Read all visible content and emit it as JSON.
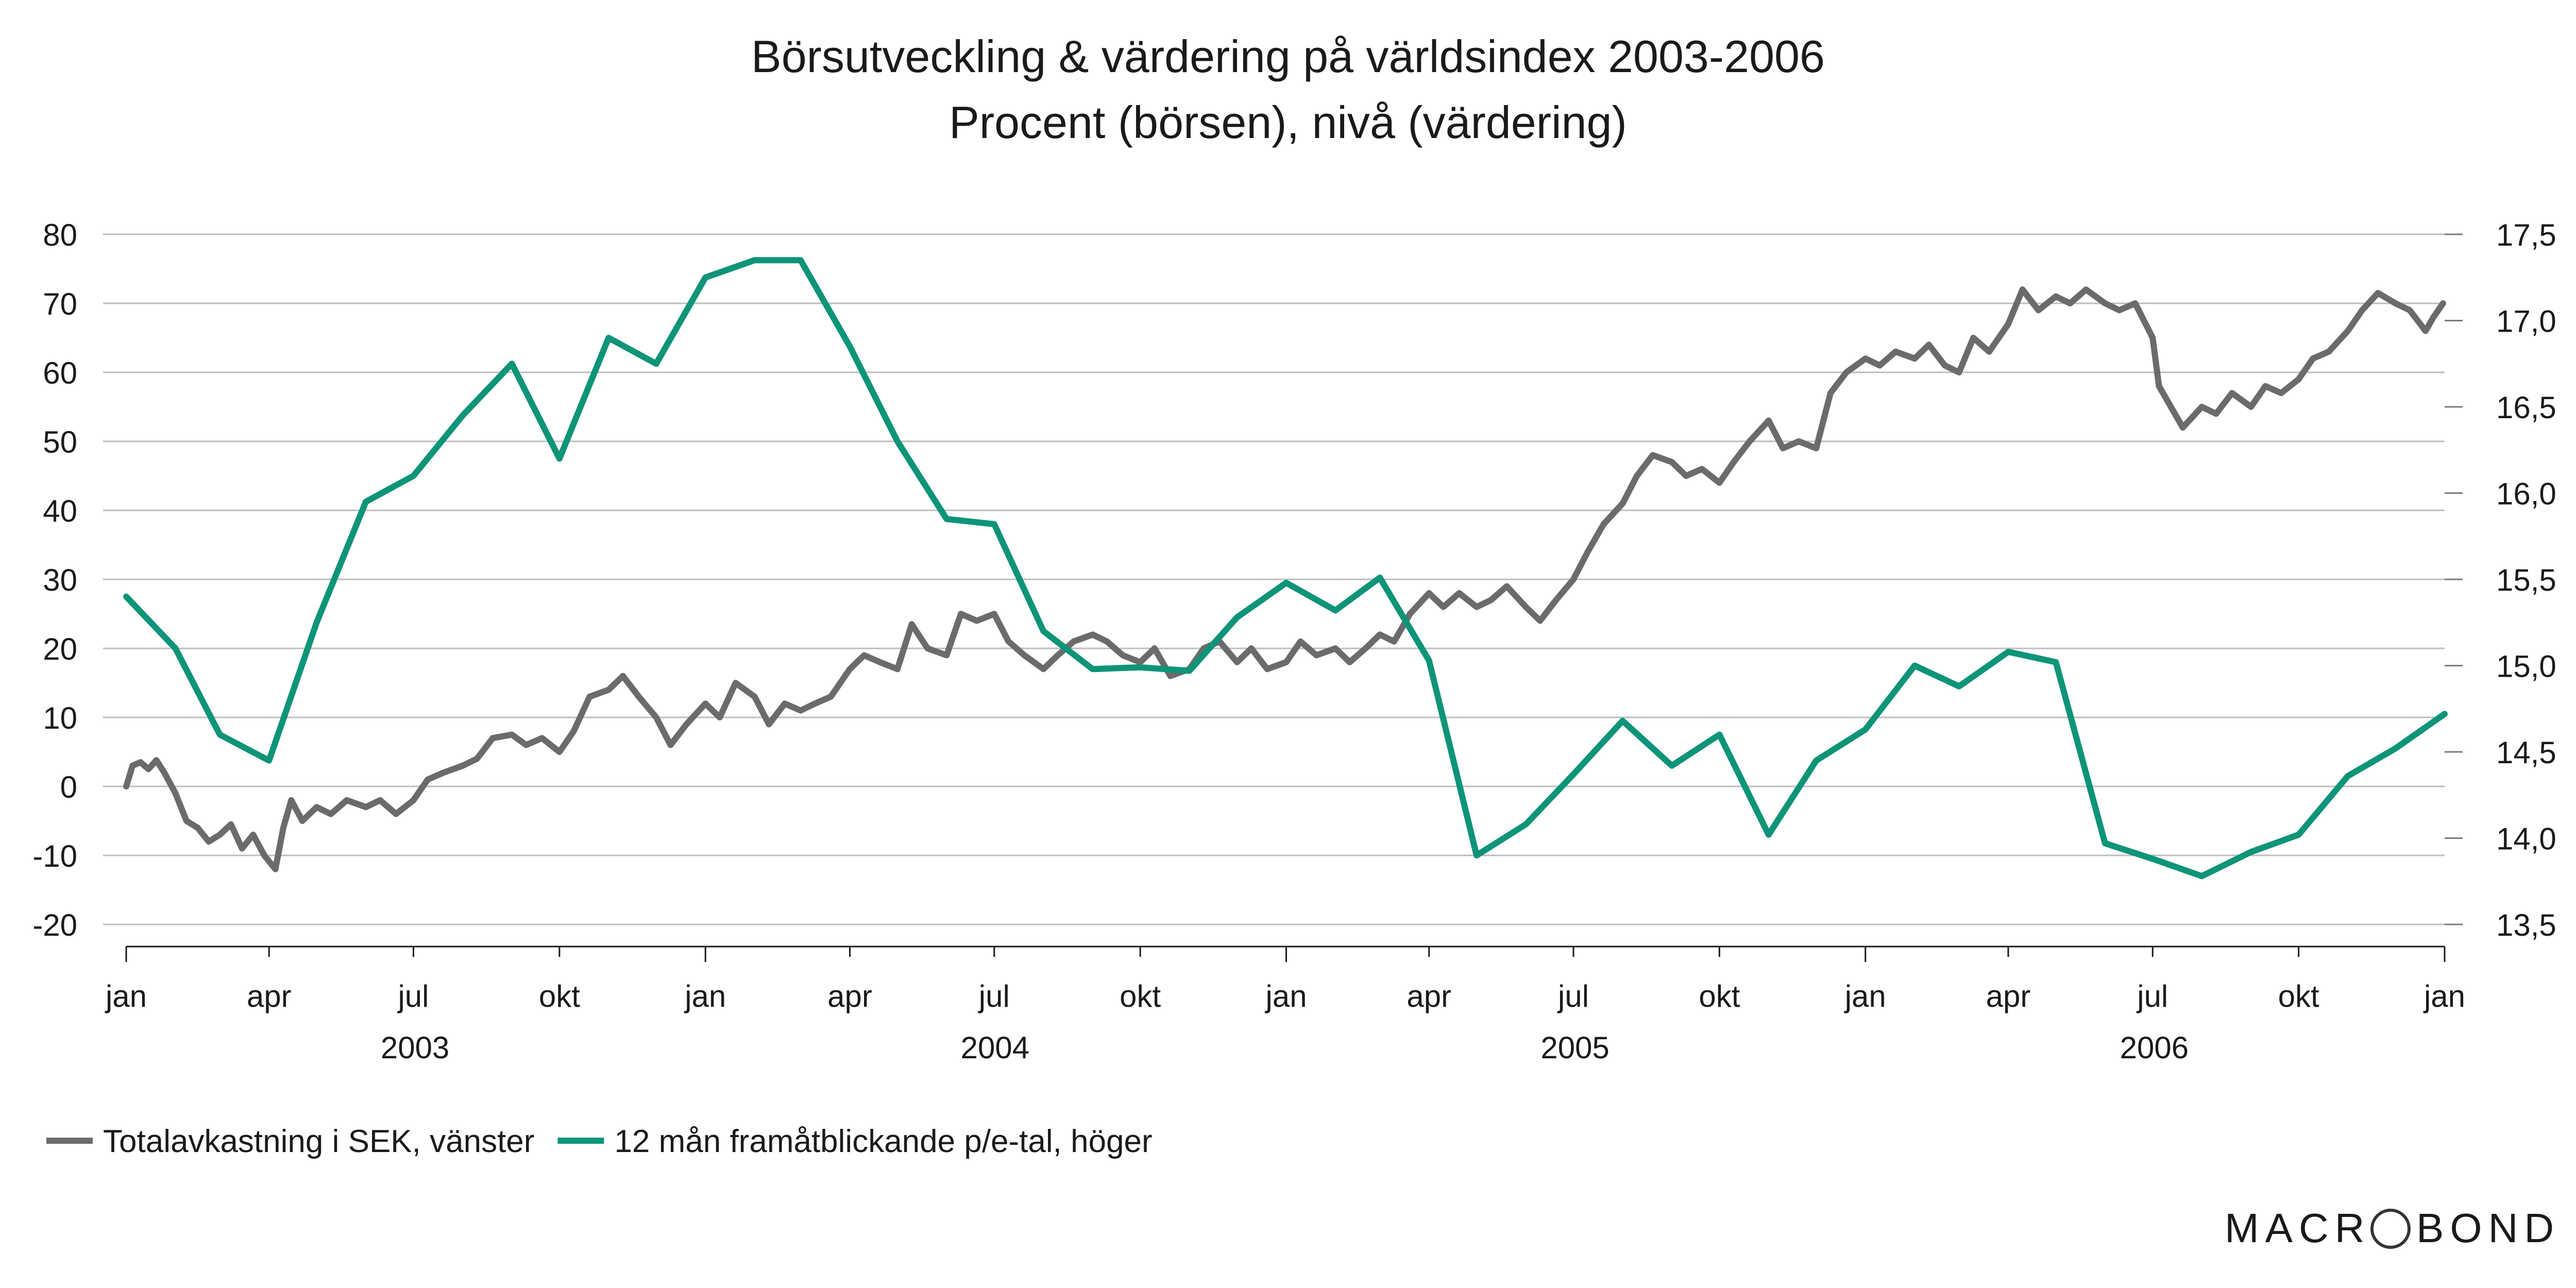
{
  "chart_data": {
    "type": "line",
    "title": "Börsutveckling & värdering på världsindex 2003-2006",
    "subtitle": "Procent (börsen), nivå (värdering)",
    "x_tick_labels": [
      "jan",
      "apr",
      "jul",
      "okt",
      "jan",
      "apr",
      "jul",
      "okt",
      "jan",
      "apr",
      "jul",
      "okt",
      "jan",
      "apr",
      "jul",
      "okt",
      "jan"
    ],
    "x_year_labels": [
      "2003",
      "2004",
      "2005",
      "2006"
    ],
    "xlim": [
      "2003-01-01",
      "2007-01-01"
    ],
    "left_axis": {
      "ylim": [
        -20,
        80
      ],
      "ticks": [
        "-20",
        "-10",
        "0",
        "10",
        "20",
        "30",
        "40",
        "50",
        "60",
        "70",
        "80"
      ]
    },
    "right_axis": {
      "ylim": [
        13.5,
        17.5
      ],
      "ticks": [
        "13,5",
        "14,0",
        "14,5",
        "15,0",
        "15,5",
        "16,0",
        "16,5",
        "17,0",
        "17,5"
      ]
    },
    "grid": true,
    "legend_position": "bottom-left",
    "series": [
      {
        "name": "Totalavkastning i SEK, vänster",
        "axis": "left",
        "color": "#6b6b6b",
        "points": [
          [
            "2003-01-01",
            0
          ],
          [
            "2003-01-05",
            3
          ],
          [
            "2003-01-10",
            3.5
          ],
          [
            "2003-01-15",
            2.5
          ],
          [
            "2003-01-20",
            3.8
          ],
          [
            "2003-01-25",
            2
          ],
          [
            "2003-02-01",
            -1
          ],
          [
            "2003-02-08",
            -5
          ],
          [
            "2003-02-15",
            -6
          ],
          [
            "2003-02-22",
            -8
          ],
          [
            "2003-03-01",
            -7
          ],
          [
            "2003-03-08",
            -5.5
          ],
          [
            "2003-03-15",
            -9
          ],
          [
            "2003-03-22",
            -7
          ],
          [
            "2003-03-29",
            -10
          ],
          [
            "2003-04-05",
            -12
          ],
          [
            "2003-04-10",
            -6
          ],
          [
            "2003-04-15",
            -2
          ],
          [
            "2003-04-22",
            -5
          ],
          [
            "2003-05-01",
            -3
          ],
          [
            "2003-05-10",
            -4
          ],
          [
            "2003-05-20",
            -2
          ],
          [
            "2003-06-01",
            -3
          ],
          [
            "2003-06-10",
            -2
          ],
          [
            "2003-06-20",
            -4
          ],
          [
            "2003-07-01",
            -2
          ],
          [
            "2003-07-10",
            1
          ],
          [
            "2003-07-20",
            2
          ],
          [
            "2003-08-01",
            3
          ],
          [
            "2003-08-10",
            4
          ],
          [
            "2003-08-20",
            7
          ],
          [
            "2003-09-01",
            7.5
          ],
          [
            "2003-09-10",
            6
          ],
          [
            "2003-09-20",
            7
          ],
          [
            "2003-10-01",
            5
          ],
          [
            "2003-10-10",
            8
          ],
          [
            "2003-10-20",
            13
          ],
          [
            "2003-11-01",
            14
          ],
          [
            "2003-11-10",
            16
          ],
          [
            "2003-11-20",
            13
          ],
          [
            "2003-12-01",
            10
          ],
          [
            "2003-12-10",
            6
          ],
          [
            "2003-12-20",
            9
          ],
          [
            "2004-01-01",
            12
          ],
          [
            "2004-01-10",
            10
          ],
          [
            "2004-01-20",
            15
          ],
          [
            "2004-02-01",
            13
          ],
          [
            "2004-02-10",
            9
          ],
          [
            "2004-02-20",
            12
          ],
          [
            "2004-03-01",
            11
          ],
          [
            "2004-03-10",
            12
          ],
          [
            "2004-03-20",
            13
          ],
          [
            "2004-04-01",
            17
          ],
          [
            "2004-04-10",
            19
          ],
          [
            "2004-04-20",
            18
          ],
          [
            "2004-05-01",
            17
          ],
          [
            "2004-05-10",
            23.5
          ],
          [
            "2004-05-20",
            20
          ],
          [
            "2004-06-01",
            19
          ],
          [
            "2004-06-10",
            25
          ],
          [
            "2004-06-20",
            24
          ],
          [
            "2004-07-01",
            25
          ],
          [
            "2004-07-10",
            21
          ],
          [
            "2004-07-20",
            19
          ],
          [
            "2004-08-01",
            17
          ],
          [
            "2004-08-10",
            19
          ],
          [
            "2004-08-20",
            21
          ],
          [
            "2004-09-01",
            22
          ],
          [
            "2004-09-10",
            21
          ],
          [
            "2004-09-20",
            19
          ],
          [
            "2004-10-01",
            18
          ],
          [
            "2004-10-10",
            20
          ],
          [
            "2004-10-20",
            16
          ],
          [
            "2004-11-01",
            17
          ],
          [
            "2004-11-10",
            20
          ],
          [
            "2004-11-20",
            21
          ],
          [
            "2004-12-01",
            18
          ],
          [
            "2004-12-10",
            20
          ],
          [
            "2004-12-20",
            17
          ],
          [
            "2005-01-01",
            18
          ],
          [
            "2005-01-10",
            21
          ],
          [
            "2005-01-20",
            19
          ],
          [
            "2005-02-01",
            20
          ],
          [
            "2005-02-10",
            18
          ],
          [
            "2005-02-20",
            20
          ],
          [
            "2005-03-01",
            22
          ],
          [
            "2005-03-10",
            21
          ],
          [
            "2005-03-20",
            25
          ],
          [
            "2005-04-01",
            28
          ],
          [
            "2005-04-10",
            26
          ],
          [
            "2005-04-20",
            28
          ],
          [
            "2005-05-01",
            26
          ],
          [
            "2005-05-10",
            27
          ],
          [
            "2005-05-20",
            29
          ],
          [
            "2005-06-01",
            26
          ],
          [
            "2005-06-10",
            24
          ],
          [
            "2005-06-20",
            27
          ],
          [
            "2005-07-01",
            30
          ],
          [
            "2005-07-10",
            34
          ],
          [
            "2005-07-20",
            38
          ],
          [
            "2005-08-01",
            41
          ],
          [
            "2005-08-10",
            45
          ],
          [
            "2005-08-20",
            48
          ],
          [
            "2005-09-01",
            47
          ],
          [
            "2005-09-10",
            45
          ],
          [
            "2005-09-20",
            46
          ],
          [
            "2005-10-01",
            44
          ],
          [
            "2005-10-10",
            47
          ],
          [
            "2005-10-20",
            50
          ],
          [
            "2005-11-01",
            53
          ],
          [
            "2005-11-10",
            49
          ],
          [
            "2005-11-20",
            50
          ],
          [
            "2005-12-01",
            49
          ],
          [
            "2005-12-10",
            57
          ],
          [
            "2005-12-20",
            60
          ],
          [
            "2006-01-01",
            62
          ],
          [
            "2006-01-10",
            61
          ],
          [
            "2006-01-20",
            63
          ],
          [
            "2006-02-01",
            62
          ],
          [
            "2006-02-10",
            64
          ],
          [
            "2006-02-20",
            61
          ],
          [
            "2006-03-01",
            60
          ],
          [
            "2006-03-10",
            65
          ],
          [
            "2006-03-20",
            63
          ],
          [
            "2006-04-01",
            67
          ],
          [
            "2006-04-10",
            72
          ],
          [
            "2006-04-20",
            69
          ],
          [
            "2006-05-01",
            71
          ],
          [
            "2006-05-10",
            70
          ],
          [
            "2006-05-20",
            72
          ],
          [
            "2006-06-01",
            70
          ],
          [
            "2006-06-10",
            69
          ],
          [
            "2006-06-20",
            70
          ],
          [
            "2006-07-01",
            65
          ],
          [
            "2006-07-05",
            58
          ],
          [
            "2006-07-10",
            56
          ],
          [
            "2006-07-20",
            52
          ],
          [
            "2006-08-01",
            55
          ],
          [
            "2006-08-10",
            54
          ],
          [
            "2006-08-20",
            57
          ],
          [
            "2006-09-01",
            55
          ],
          [
            "2006-09-10",
            58
          ],
          [
            "2006-09-20",
            57
          ],
          [
            "2006-10-01",
            59
          ],
          [
            "2006-10-10",
            62
          ],
          [
            "2006-10-20",
            63
          ],
          [
            "2006-11-01",
            66
          ],
          [
            "2006-11-10",
            69
          ],
          [
            "2006-11-20",
            71.5
          ],
          [
            "2006-12-01",
            70
          ],
          [
            "2006-12-10",
            69
          ],
          [
            "2006-12-20",
            66
          ],
          [
            "2006-12-25",
            68
          ],
          [
            "2006-12-31",
            70
          ]
        ]
      },
      {
        "name": "12 mån framåtblickande p/e-tal, höger",
        "axis": "right",
        "color": "#0e9478",
        "points": [
          [
            "2003-01-01",
            15.4
          ],
          [
            "2003-02-01",
            15.1
          ],
          [
            "2003-03-01",
            14.6
          ],
          [
            "2003-04-01",
            14.45
          ],
          [
            "2003-05-01",
            15.25
          ],
          [
            "2003-06-01",
            15.95
          ],
          [
            "2003-07-01",
            16.1
          ],
          [
            "2003-08-01",
            16.45
          ],
          [
            "2003-09-01",
            16.75
          ],
          [
            "2003-10-01",
            16.2
          ],
          [
            "2003-11-01",
            16.9
          ],
          [
            "2003-12-01",
            16.75
          ],
          [
            "2004-01-01",
            17.25
          ],
          [
            "2004-02-01",
            17.35
          ],
          [
            "2004-03-01",
            17.35
          ],
          [
            "2004-04-01",
            16.85
          ],
          [
            "2004-05-01",
            16.3
          ],
          [
            "2004-06-01",
            15.85
          ],
          [
            "2004-07-01",
            15.82
          ],
          [
            "2004-08-01",
            15.2
          ],
          [
            "2004-09-01",
            14.98
          ],
          [
            "2004-10-01",
            14.99
          ],
          [
            "2004-11-01",
            14.97
          ],
          [
            "2004-12-01",
            15.28
          ],
          [
            "2005-01-01",
            15.48
          ],
          [
            "2005-02-01",
            15.32
          ],
          [
            "2005-03-01",
            15.51
          ],
          [
            "2005-04-01",
            15.03
          ],
          [
            "2005-05-01",
            13.9
          ],
          [
            "2005-06-01",
            14.08
          ],
          [
            "2005-07-01",
            14.37
          ],
          [
            "2005-08-01",
            14.68
          ],
          [
            "2005-09-01",
            14.42
          ],
          [
            "2005-10-01",
            14.6
          ],
          [
            "2005-11-01",
            14.02
          ],
          [
            "2005-12-01",
            14.45
          ],
          [
            "2006-01-01",
            14.63
          ],
          [
            "2006-02-01",
            15.0
          ],
          [
            "2006-03-01",
            14.88
          ],
          [
            "2006-04-01",
            15.08
          ],
          [
            "2006-05-01",
            15.02
          ],
          [
            "2006-06-01",
            13.97
          ],
          [
            "2006-07-01",
            13.88
          ],
          [
            "2006-08-01",
            13.78
          ],
          [
            "2006-09-01",
            13.92
          ],
          [
            "2006-10-01",
            14.02
          ],
          [
            "2006-11-01",
            14.36
          ],
          [
            "2006-12-01",
            14.52
          ],
          [
            "2007-01-01",
            14.72
          ]
        ]
      }
    ]
  },
  "branding": {
    "logo_text": "MACROBOND"
  }
}
